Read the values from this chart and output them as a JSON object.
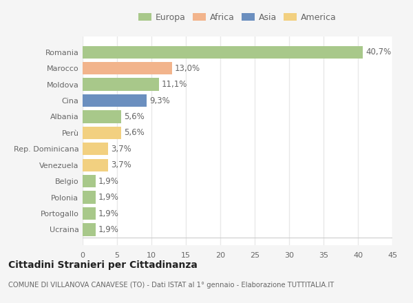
{
  "categories": [
    "Romania",
    "Marocco",
    "Moldova",
    "Cina",
    "Albania",
    "Perù",
    "Rep. Dominicana",
    "Venezuela",
    "Belgio",
    "Polonia",
    "Portogallo",
    "Ucraina"
  ],
  "values": [
    40.7,
    13.0,
    11.1,
    9.3,
    5.6,
    5.6,
    3.7,
    3.7,
    1.9,
    1.9,
    1.9,
    1.9
  ],
  "labels": [
    "40,7%",
    "13,0%",
    "11,1%",
    "9,3%",
    "5,6%",
    "5,6%",
    "3,7%",
    "3,7%",
    "1,9%",
    "1,9%",
    "1,9%",
    "1,9%"
  ],
  "continents": [
    "Europa",
    "Africa",
    "Europa",
    "Asia",
    "Europa",
    "America",
    "America",
    "America",
    "Europa",
    "Europa",
    "Europa",
    "Europa"
  ],
  "colors": {
    "Europa": "#a8c88a",
    "Africa": "#f2b48c",
    "Asia": "#6b8fbf",
    "America": "#f2d080"
  },
  "xlim": [
    0,
    45
  ],
  "xticks": [
    0,
    5,
    10,
    15,
    20,
    25,
    30,
    35,
    40,
    45
  ],
  "title": "Cittadini Stranieri per Cittadinanza",
  "subtitle": "COMUNE DI VILLANOVA CANAVESE (TO) - Dati ISTAT al 1° gennaio - Elaborazione TUTTITALIA.IT",
  "fig_background": "#f5f5f5",
  "plot_background": "#ffffff",
  "grid_color": "#e8e8e8",
  "bar_height": 0.78,
  "text_color": "#666666",
  "label_fontsize": 8.5,
  "tick_fontsize": 8,
  "legend_fontsize": 9
}
